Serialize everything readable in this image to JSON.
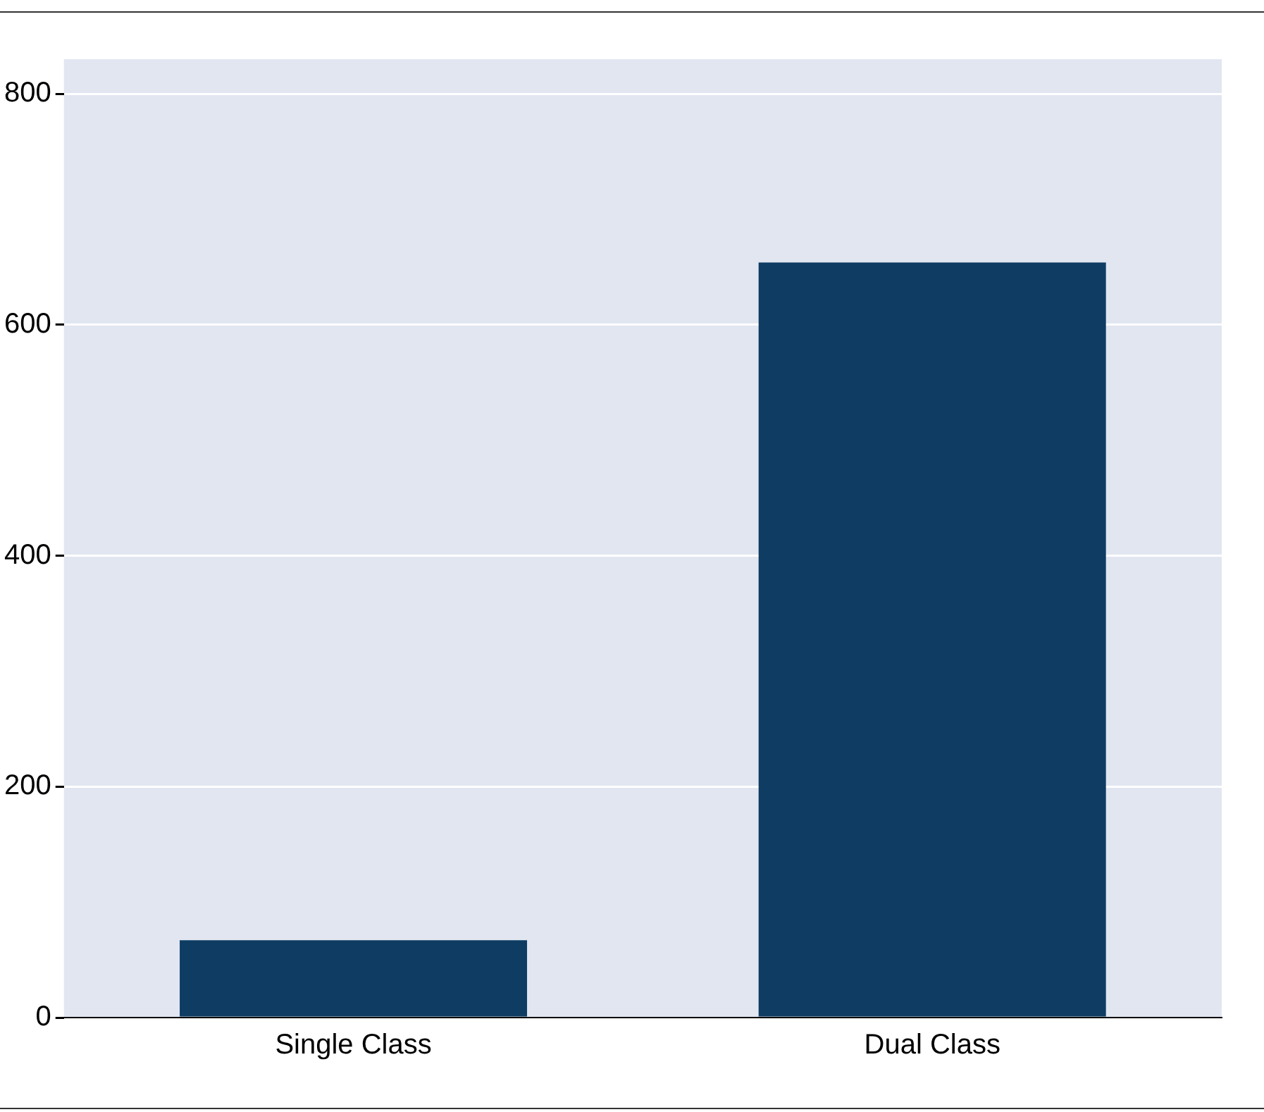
{
  "chart_data": {
    "type": "bar",
    "categories": [
      "Single Class",
      "Dual Class"
    ],
    "values": [
      67,
      654
    ],
    "color": "#0e3c63",
    "ylim": [
      0,
      830
    ],
    "yticks": [
      0,
      200,
      400,
      600,
      800
    ],
    "grid": "y",
    "legend": false
  }
}
